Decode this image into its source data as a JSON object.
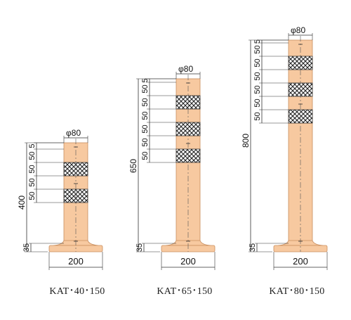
{
  "colors": {
    "post_fill": "#f7c9a0",
    "post_edge": "#c98e5e",
    "line": "#333333",
    "band_fill": "#ffffff",
    "band_hatch": "#222222"
  },
  "posts": [
    {
      "id": "kat-40-150",
      "model": "KAT･40･150",
      "diameter_label": "φ80",
      "base_label": "200",
      "height_label": "400",
      "base_height_label": "35",
      "top_dim_labels": [
        "5",
        "50",
        "50",
        "50",
        "50"
      ]
    },
    {
      "id": "kat-65-150",
      "model": "KAT･65･150",
      "diameter_label": "φ80",
      "base_label": "200",
      "height_label": "650",
      "base_height_label": "35",
      "top_dim_labels": [
        "5",
        "50",
        "50",
        "50",
        "50",
        "50",
        "50"
      ]
    },
    {
      "id": "kat-80-150",
      "model": "KAT･80･150",
      "diameter_label": "φ80",
      "base_label": "200",
      "height_label": "800",
      "base_height_label": "35",
      "top_dim_labels": [
        "5",
        "50",
        "50",
        "50",
        "50",
        "50",
        "50"
      ]
    }
  ]
}
